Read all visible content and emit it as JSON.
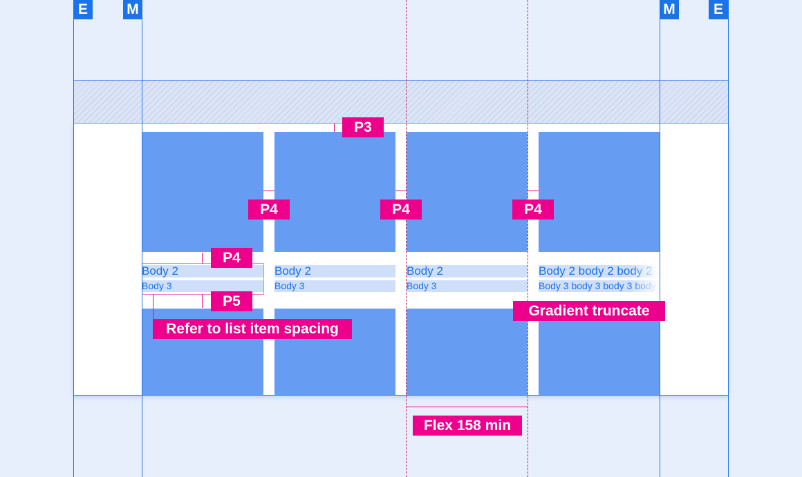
{
  "badges": {
    "edge": "E",
    "margin": "M"
  },
  "tiles": [
    {
      "body2": "Body 2",
      "body3": "Body 3"
    },
    {
      "body2": "Body 2",
      "body3": "Body 3"
    },
    {
      "body2": "Body 2",
      "body3": "Body 3"
    },
    {
      "body2": "Body 2 body 2 body 2",
      "body3": "Body 3 body 3 body 3 body 3"
    }
  ],
  "annotations": {
    "p3": "P3",
    "p4": "P4",
    "p5": "P5",
    "list_spacing": "Refer to list item spacing",
    "gradient": "Gradient truncate",
    "flex": "Flex 158 min"
  },
  "colors": {
    "grid": "#1a73e8",
    "tile": "#669df3",
    "annotation": "#ec008c",
    "background": "#e8effc"
  }
}
